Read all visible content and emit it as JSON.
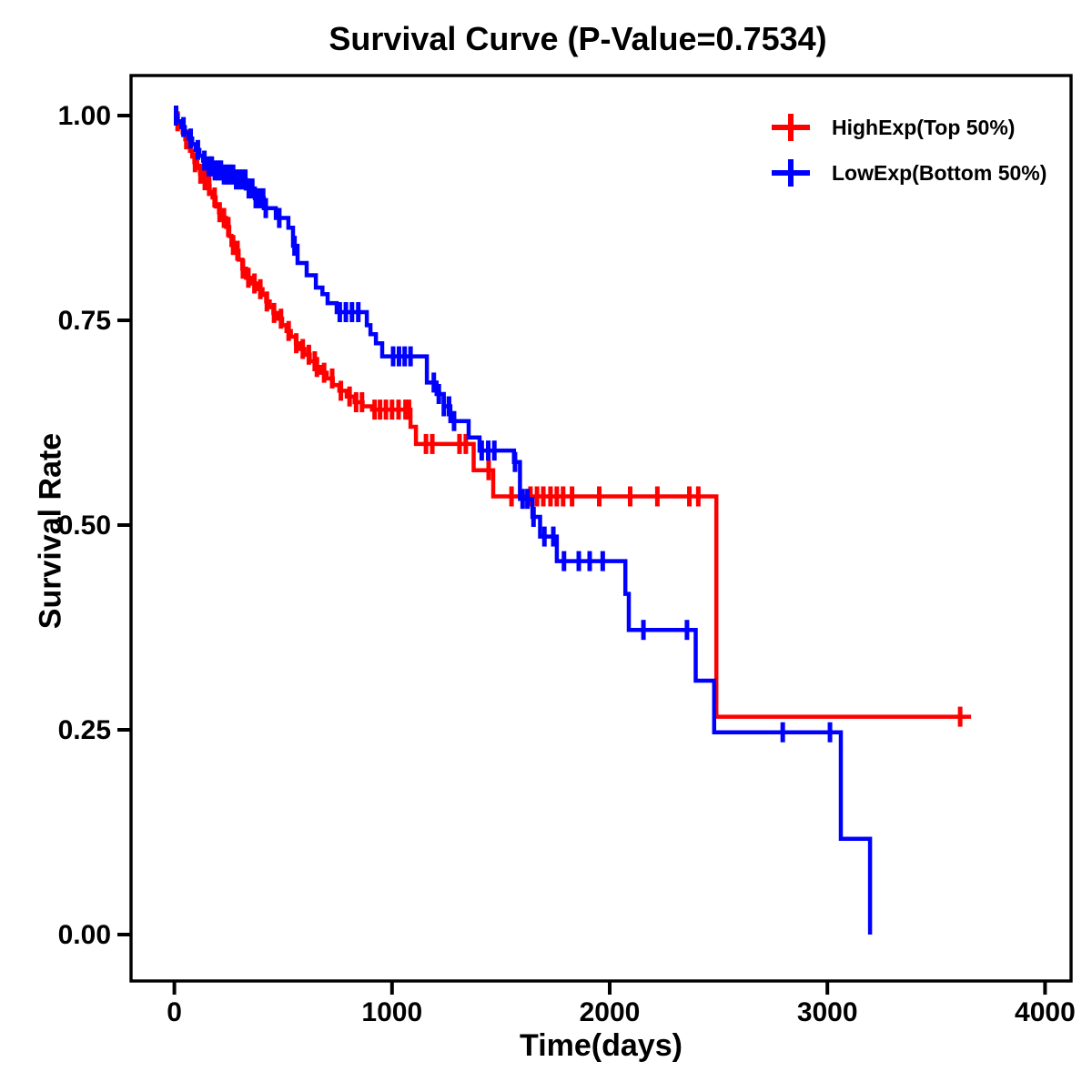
{
  "title": "Survival Curve (P-Value=0.7534)",
  "axes": {
    "x": {
      "label": "Time(days)",
      "tick_labels": [
        "0",
        "1000",
        "2000",
        "3000",
        "4000"
      ],
      "tick_values": [
        0,
        1000,
        2000,
        3000,
        4000
      ]
    },
    "y": {
      "label": "Survival Rate",
      "tick_labels": [
        "0.00",
        "0.25",
        "0.50",
        "0.75",
        "1.00"
      ],
      "tick_values": [
        0,
        0.25,
        0.5,
        0.75,
        1.0
      ]
    }
  },
  "legend": {
    "items": [
      {
        "label": "HighExp(Top 50%)",
        "color": "#ff0000"
      },
      {
        "label": "LowExp(Bottom 50%)",
        "color": "#0000ff"
      }
    ]
  },
  "chart_data": {
    "type": "line",
    "subtype": "kaplan-meier-step-function",
    "title": "Survival Curve (P-Value=0.7534)",
    "p_value": 0.7534,
    "xlabel": "Time(days)",
    "ylabel": "Survival Rate",
    "xlim": [
      0,
      4000
    ],
    "ylim": [
      0,
      1
    ],
    "grid": false,
    "legend_position": "top-right",
    "series": [
      {
        "name": "HighExp(Top 50%)",
        "color": "#ff0000",
        "steps": [
          [
            0,
            1.0
          ],
          [
            12,
            0.993
          ],
          [
            25,
            0.986
          ],
          [
            38,
            0.979
          ],
          [
            50,
            0.971
          ],
          [
            60,
            0.964
          ],
          [
            72,
            0.957
          ],
          [
            82,
            0.95
          ],
          [
            92,
            0.943
          ],
          [
            105,
            0.936
          ],
          [
            118,
            0.929
          ],
          [
            132,
            0.921
          ],
          [
            148,
            0.914
          ],
          [
            162,
            0.907
          ],
          [
            175,
            0.9
          ],
          [
            190,
            0.889
          ],
          [
            205,
            0.882
          ],
          [
            222,
            0.875
          ],
          [
            238,
            0.864
          ],
          [
            252,
            0.853
          ],
          [
            262,
            0.842
          ],
          [
            278,
            0.835
          ],
          [
            295,
            0.824
          ],
          [
            312,
            0.813
          ],
          [
            330,
            0.802
          ],
          [
            355,
            0.795
          ],
          [
            382,
            0.788
          ],
          [
            405,
            0.781
          ],
          [
            422,
            0.773
          ],
          [
            438,
            0.766
          ],
          [
            455,
            0.759
          ],
          [
            472,
            0.752
          ],
          [
            495,
            0.744
          ],
          [
            515,
            0.737
          ],
          [
            535,
            0.73
          ],
          [
            558,
            0.722
          ],
          [
            578,
            0.715
          ],
          [
            598,
            0.708
          ],
          [
            622,
            0.7
          ],
          [
            648,
            0.693
          ],
          [
            672,
            0.686
          ],
          [
            700,
            0.679
          ],
          [
            728,
            0.671
          ],
          [
            758,
            0.664
          ],
          [
            792,
            0.657
          ],
          [
            828,
            0.65
          ],
          [
            865,
            0.645
          ],
          [
            908,
            0.641
          ],
          [
            1085,
            0.62
          ],
          [
            1110,
            0.599
          ],
          [
            1375,
            0.567
          ],
          [
            1465,
            0.535
          ],
          [
            2490,
            0.266
          ]
        ],
        "censor_times": [
          15,
          55,
          95,
          120,
          140,
          160,
          185,
          208,
          228,
          248,
          270,
          290,
          315,
          340,
          368,
          395,
          425,
          458,
          490,
          525,
          560,
          590,
          618,
          645,
          655,
          688,
          725,
          765,
          805,
          835,
          862,
          920,
          945,
          972,
          1000,
          1030,
          1062,
          1078,
          1156,
          1185,
          1310,
          1339,
          1444,
          1549,
          1636,
          1666,
          1695,
          1728,
          1757,
          1786,
          1827,
          1952,
          2094,
          2219,
          2366,
          2407,
          3610
        ],
        "end_time": 3660
      },
      {
        "name": "LowExp(Bottom 50%)",
        "color": "#0000ff",
        "steps": [
          [
            0,
            1.0
          ],
          [
            15,
            0.993
          ],
          [
            32,
            0.986
          ],
          [
            48,
            0.979
          ],
          [
            65,
            0.972
          ],
          [
            82,
            0.965
          ],
          [
            98,
            0.958
          ],
          [
            115,
            0.951
          ],
          [
            132,
            0.945
          ],
          [
            152,
            0.938
          ],
          [
            185,
            0.933
          ],
          [
            225,
            0.928
          ],
          [
            273,
            0.922
          ],
          [
            328,
            0.911
          ],
          [
            370,
            0.899
          ],
          [
            411,
            0.887
          ],
          [
            466,
            0.875
          ],
          [
            524,
            0.863
          ],
          [
            545,
            0.841
          ],
          [
            566,
            0.82
          ],
          [
            608,
            0.805
          ],
          [
            650,
            0.79
          ],
          [
            680,
            0.782
          ],
          [
            704,
            0.771
          ],
          [
            746,
            0.76
          ],
          [
            884,
            0.744
          ],
          [
            901,
            0.733
          ],
          [
            926,
            0.722
          ],
          [
            955,
            0.706
          ],
          [
            1160,
            0.674
          ],
          [
            1205,
            0.66
          ],
          [
            1238,
            0.645
          ],
          [
            1268,
            0.627
          ],
          [
            1352,
            0.607
          ],
          [
            1402,
            0.591
          ],
          [
            1560,
            0.577
          ],
          [
            1588,
            0.532
          ],
          [
            1645,
            0.51
          ],
          [
            1680,
            0.486
          ],
          [
            1757,
            0.456
          ],
          [
            2072,
            0.416
          ],
          [
            2088,
            0.372
          ],
          [
            2395,
            0.31
          ],
          [
            2480,
            0.247
          ],
          [
            3062,
            0.117
          ],
          [
            3196,
            0.0
          ]
        ],
        "censor_times": [
          8,
          42,
          75,
          108,
          138,
          158,
          172,
          186,
          200,
          214,
          228,
          242,
          256,
          270,
          284,
          298,
          312,
          326,
          342,
          358,
          374,
          392,
          408,
          420,
          482,
          552,
          760,
          788,
          816,
          845,
          1005,
          1032,
          1058,
          1085,
          1192,
          1215,
          1238,
          1262,
          1285,
          1412,
          1442,
          1470,
          1565,
          1600,
          1622,
          1650,
          1700,
          1741,
          1790,
          1858,
          1908,
          1968,
          2155,
          2355,
          2795,
          3012
        ],
        "end_time": 3196
      }
    ]
  }
}
